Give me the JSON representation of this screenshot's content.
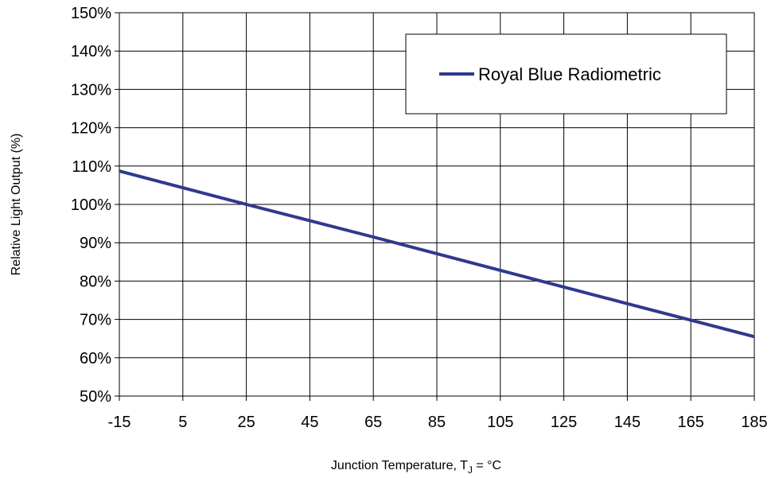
{
  "chart_data": {
    "type": "line",
    "title": "",
    "xlabel": "Junction Temperature, T",
    "xlabel_subscript": "J",
    "xlabel_suffix": " = °C",
    "ylabel": "Relative Light Output (%)",
    "x_ticks": [
      "-15",
      "5",
      "25",
      "45",
      "65",
      "85",
      "105",
      "125",
      "145",
      "165",
      "185"
    ],
    "y_ticks": [
      "50%",
      "60%",
      "70%",
      "80%",
      "90%",
      "100%",
      "110%",
      "120%",
      "130%",
      "140%",
      "150%"
    ],
    "xlim": [
      -15,
      185
    ],
    "ylim": [
      50,
      150
    ],
    "grid": true,
    "legend_position": "top-right",
    "series": [
      {
        "name": "Royal Blue Radiometric",
        "color": "#2e3a8c",
        "x": [
          -15,
          25,
          65,
          105,
          145,
          185
        ],
        "y": [
          108.7,
          100,
          91.5,
          82.8,
          74.1,
          65.5
        ]
      }
    ]
  }
}
